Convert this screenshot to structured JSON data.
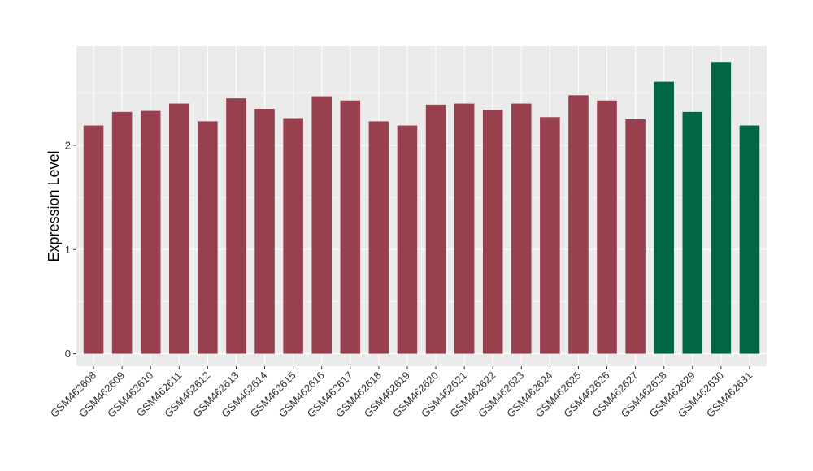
{
  "chart_data": {
    "type": "bar",
    "title": "",
    "xlabel": "",
    "ylabel": "Expression Level",
    "ylim": [
      -0.12,
      2.95
    ],
    "yticks": [
      0,
      1,
      2
    ],
    "grid": true,
    "legend": "none",
    "categories": [
      "GSM462608",
      "GSM462609",
      "GSM462610",
      "GSM462611",
      "GSM462612",
      "GSM462613",
      "GSM462614",
      "GSM462615",
      "GSM462616",
      "GSM462617",
      "GSM462618",
      "GSM462619",
      "GSM462620",
      "GSM462621",
      "GSM462622",
      "GSM462623",
      "GSM462624",
      "GSM462625",
      "GSM462626",
      "GSM462627",
      "GSM462628",
      "GSM462629",
      "GSM462630",
      "GSM462631"
    ],
    "values": [
      2.19,
      2.32,
      2.33,
      2.4,
      2.23,
      2.45,
      2.35,
      2.26,
      2.47,
      2.43,
      2.23,
      2.19,
      2.39,
      2.4,
      2.34,
      2.4,
      2.27,
      2.48,
      2.43,
      2.25,
      2.61,
      2.32,
      2.8,
      2.19
    ],
    "groups": [
      "a",
      "a",
      "a",
      "a",
      "a",
      "a",
      "a",
      "a",
      "a",
      "a",
      "a",
      "a",
      "a",
      "a",
      "a",
      "a",
      "a",
      "a",
      "a",
      "a",
      "b",
      "b",
      "b",
      "b"
    ],
    "colors": {
      "a": "#99404f",
      "b": "#006644",
      "panel": "#ebebeb",
      "grid": "#ffffff"
    }
  }
}
